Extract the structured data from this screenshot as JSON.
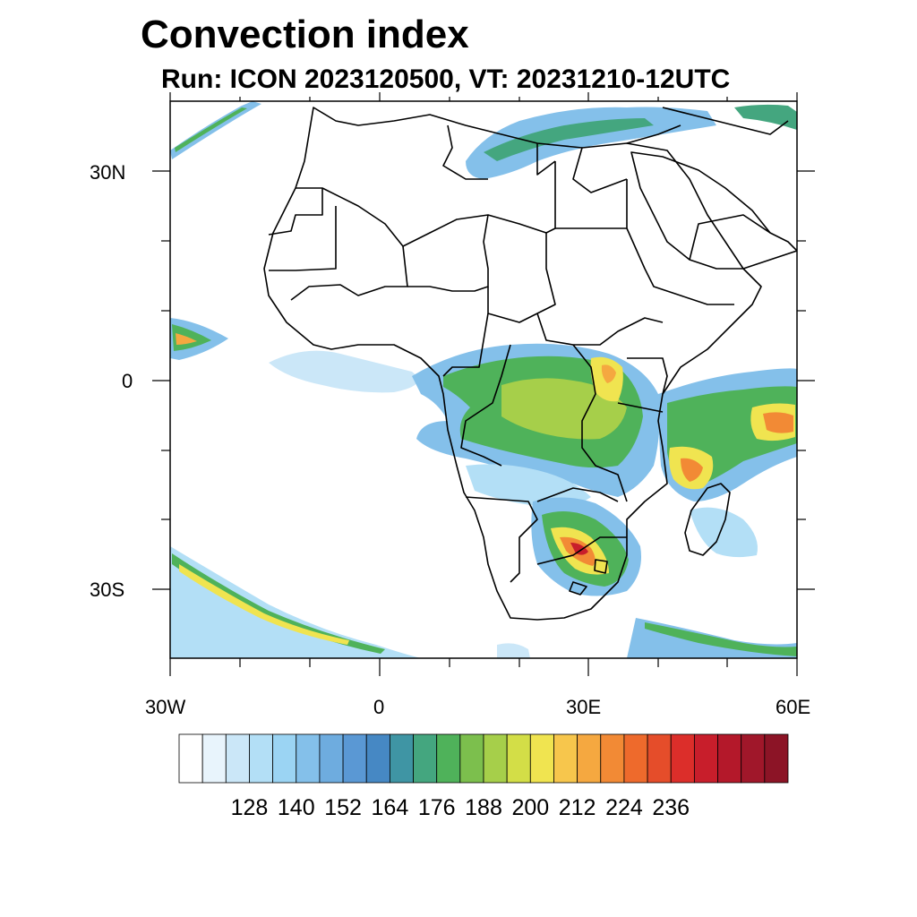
{
  "title": "Convection index",
  "subtitle": "Run: ICON 2023120500,  VT: 20231210-12UTC",
  "axes": {
    "lat_labels": [
      "30N",
      "0",
      "30S"
    ],
    "lon_labels": [
      "30W",
      "0",
      "30E",
      "60E"
    ]
  },
  "colorbar": {
    "labels": [
      "128",
      "140",
      "152",
      "164",
      "176",
      "188",
      "200",
      "212",
      "224",
      "236"
    ],
    "colors": [
      "#ffffff",
      "#e8f4fc",
      "#cbe7f8",
      "#b3dff6",
      "#9bd4f3",
      "#84c0ea",
      "#6eacdf",
      "#5a98d4",
      "#4688c4",
      "#3f95a4",
      "#44a67f",
      "#4fb25a",
      "#7cbf4d",
      "#a6cf4a",
      "#d3de47",
      "#f0e450",
      "#f7c64c",
      "#f5a840",
      "#f28a35",
      "#ee6a2c",
      "#e54d2a",
      "#dc2e2a",
      "#c81e2b",
      "#b4182a",
      "#a0172a",
      "#8c1426"
    ]
  }
}
